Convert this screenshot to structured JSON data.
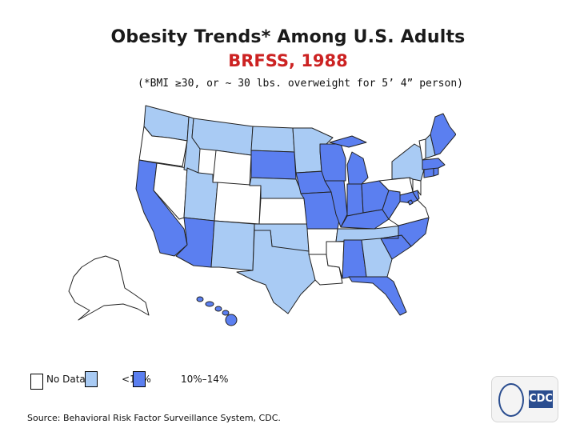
{
  "title": "Obesity Trends* Among U.S. Adults",
  "subtitle": "BRFSS, 1988",
  "note": "(*BMI ≥30, or ~ 30 lbs. overweight for 5’ 4” person)",
  "colors": {
    "no_data": "#ffffff",
    "lt10": "#a9cbf4",
    "10to14": "#5b7ff0",
    "border": "#222222",
    "subtitle": "#cc2222"
  },
  "legend": [
    {
      "label": "No Data",
      "category": "no_data"
    },
    {
      "label": "<10%",
      "category": "lt10"
    },
    {
      "label": "10%–14%",
      "category": "10to14"
    }
  ],
  "source": "Source: Behavioral Risk Factor Surveillance System, CDC.",
  "logo": {
    "text": "CDC",
    "icon": "cdc-logo-icon"
  },
  "states": {
    "WA": "lt10",
    "OR": "no_data",
    "CA": "10to14",
    "NV": "no_data",
    "ID": "lt10",
    "MT": "lt10",
    "WY": "no_data",
    "UT": "lt10",
    "AZ": "10to14",
    "CO": "no_data",
    "NM": "lt10",
    "ND": "lt10",
    "SD": "10to14",
    "NE": "lt10",
    "KS": "no_data",
    "OK": "lt10",
    "TX": "lt10",
    "MN": "lt10",
    "IA": "10to14",
    "MO": "10to14",
    "AR": "no_data",
    "LA": "no_data",
    "WI": "10to14",
    "IL": "10to14",
    "MI": "10to14",
    "IN": "10to14",
    "OH": "10to14",
    "KY": "10to14",
    "TN": "lt10",
    "MS": "no_data",
    "AL": "10to14",
    "GA": "lt10",
    "FL": "10to14",
    "SC": "10to14",
    "NC": "10to14",
    "VA": "no_data",
    "WV": "10to14",
    "MD": "10to14",
    "DE": "10to14",
    "NJ": "no_data",
    "PA": "no_data",
    "NY": "lt10",
    "CT": "10to14",
    "RI": "10to14",
    "MA": "10to14",
    "VT": "no_data",
    "NH": "lt10",
    "ME": "10to14",
    "DC": "10to14",
    "AK": "no_data",
    "HI": "10to14"
  }
}
